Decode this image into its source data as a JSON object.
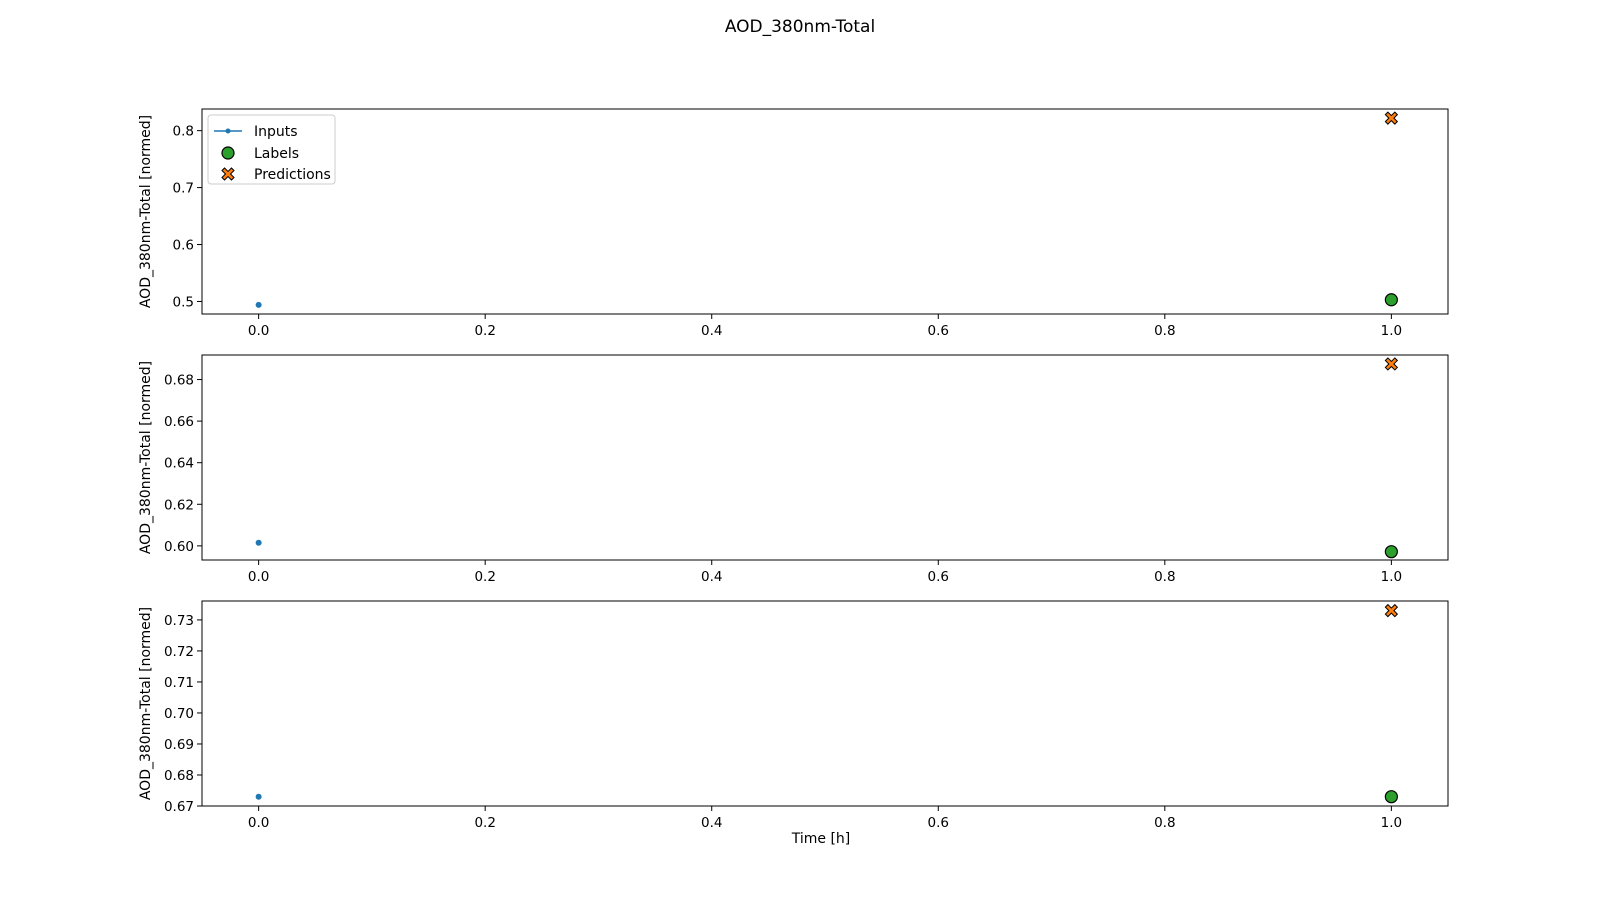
{
  "chart_data": {
    "type": "scatter",
    "title": "AOD_380nm-Total",
    "xlabel": "Time [h]",
    "legend": {
      "placement": "upper-left",
      "entries": [
        "Inputs",
        "Labels",
        "Predictions"
      ]
    },
    "colors": {
      "inputs": "#1f77b4",
      "labels": "#2ca02c",
      "predictions": "#ff7f0e",
      "edge": "#000000"
    },
    "grid": false,
    "panels": [
      {
        "ylabel": "AOD_380nm-Total [normed]",
        "xlim": [
          -0.05,
          1.05
        ],
        "ylim": [
          0.478,
          0.838
        ],
        "xticks": [
          0.0,
          0.2,
          0.4,
          0.6,
          0.8,
          1.0
        ],
        "xtick_labels": [
          "0.0",
          "0.2",
          "0.4",
          "0.6",
          "0.8",
          "1.0"
        ],
        "yticks": [
          0.5,
          0.6,
          0.7,
          0.8
        ],
        "ytick_labels": [
          "0.5",
          "0.6",
          "0.7",
          "0.8"
        ],
        "inputs": [
          {
            "x": 0.0,
            "y": 0.494
          }
        ],
        "labels": [
          {
            "x": 1.0,
            "y": 0.503
          }
        ],
        "predictions": [
          {
            "x": 1.0,
            "y": 0.822
          }
        ]
      },
      {
        "ylabel": "AOD_380nm-Total [normed]",
        "xlim": [
          -0.05,
          1.05
        ],
        "ylim": [
          0.5932,
          0.6918
        ],
        "xticks": [
          0.0,
          0.2,
          0.4,
          0.6,
          0.8,
          1.0
        ],
        "xtick_labels": [
          "0.0",
          "0.2",
          "0.4",
          "0.6",
          "0.8",
          "1.0"
        ],
        "yticks": [
          0.6,
          0.62,
          0.64,
          0.66,
          0.68
        ],
        "ytick_labels": [
          "0.60",
          "0.62",
          "0.64",
          "0.66",
          "0.68"
        ],
        "inputs": [
          {
            "x": 0.0,
            "y": 0.6015
          }
        ],
        "labels": [
          {
            "x": 1.0,
            "y": 0.5972
          }
        ],
        "predictions": [
          {
            "x": 1.0,
            "y": 0.6875
          }
        ]
      },
      {
        "ylabel": "AOD_380nm-Total [normed]",
        "xlim": [
          -0.05,
          1.05
        ],
        "ylim": [
          0.67,
          0.7361
        ],
        "xticks": [
          0.0,
          0.2,
          0.4,
          0.6,
          0.8,
          1.0
        ],
        "xtick_labels": [
          "0.0",
          "0.2",
          "0.4",
          "0.6",
          "0.8",
          "1.0"
        ],
        "yticks": [
          0.67,
          0.68,
          0.69,
          0.7,
          0.71,
          0.72,
          0.73
        ],
        "ytick_labels": [
          "0.67",
          "0.68",
          "0.69",
          "0.70",
          "0.71",
          "0.72",
          "0.73"
        ],
        "inputs": [
          {
            "x": 0.0,
            "y": 0.673
          }
        ],
        "labels": [
          {
            "x": 1.0,
            "y": 0.673
          }
        ],
        "predictions": [
          {
            "x": 1.0,
            "y": 0.733
          }
        ]
      }
    ]
  }
}
